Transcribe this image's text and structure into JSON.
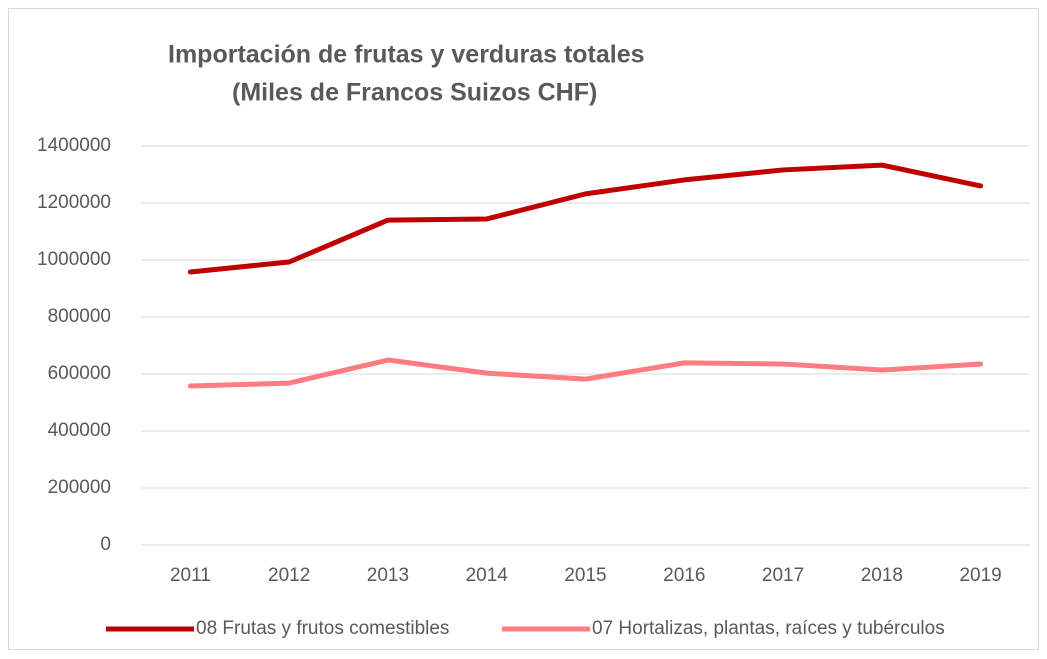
{
  "chart_data": {
    "type": "line",
    "title": "Importación de frutas y verduras totales",
    "subtitle": "(Miles de Francos Suizos CHF)",
    "categories": [
      "2011",
      "2012",
      "2013",
      "2014",
      "2015",
      "2016",
      "2017",
      "2018",
      "2019"
    ],
    "series": [
      {
        "name": "08 Frutas y frutos comestibles",
        "color": "#c00000",
        "values": [
          958000,
          993000,
          1140000,
          1144000,
          1232000,
          1281000,
          1316000,
          1333000,
          1260000
        ]
      },
      {
        "name": "07 Hortalizas, plantas, raíces y tubérculos",
        "color": "#ff7c80",
        "values": [
          558000,
          568000,
          649000,
          603000,
          582000,
          639000,
          635000,
          614000,
          635000
        ]
      }
    ],
    "ylim": [
      0,
      1400000
    ],
    "yticks": [
      0,
      200000,
      400000,
      600000,
      800000,
      1000000,
      1200000,
      1400000
    ],
    "grid": true,
    "legend": "bottom"
  }
}
